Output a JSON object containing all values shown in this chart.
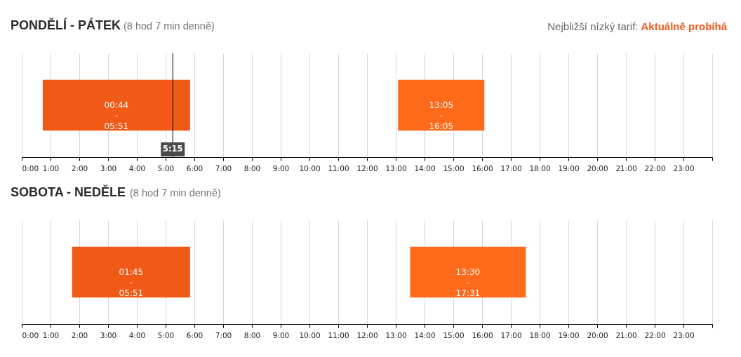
{
  "chart_data": [
    {
      "type": "bar",
      "orientation": "horizontal",
      "title": "PONDĚLÍ - PÁTEK",
      "subtitle": "(8 hod 7 min denně)",
      "annotations": [
        "Nejbližší nízký tarif:",
        "Aktuálně probíhá"
      ],
      "categories": [
        null
      ],
      "series": [
        {
          "color": "#f05a16",
          "values": [
            5.12
          ],
          "base": [
            0.73
          ],
          "value_labels": [
            "00:44\n-\n05:51"
          ]
        },
        {
          "color": "#fc6a1a",
          "values": [
            3.0
          ],
          "base": [
            13.08
          ],
          "value_labels": [
            "13:05\n-\n16:05"
          ]
        }
      ],
      "xlim": [
        0,
        24
      ],
      "xticks": [
        {
          "value": 0,
          "label": "0:00"
        },
        {
          "value": 1,
          "label": "1:00"
        },
        {
          "value": 2,
          "label": "2:00"
        },
        {
          "value": 3,
          "label": "3:00"
        },
        {
          "value": 4,
          "label": "4:00"
        },
        {
          "value": 5,
          "label": "5:00"
        },
        {
          "value": 6,
          "label": "6:00"
        },
        {
          "value": 7,
          "label": "7:00"
        },
        {
          "value": 8,
          "label": "8:00"
        },
        {
          "value": 9,
          "label": "9:00"
        },
        {
          "value": 10,
          "label": "10:00"
        },
        {
          "value": 11,
          "label": "11:00"
        },
        {
          "value": 12,
          "label": "12:00"
        },
        {
          "value": 13,
          "label": "13:00"
        },
        {
          "value": 14,
          "label": "14:00"
        },
        {
          "value": 15,
          "label": "15:00"
        },
        {
          "value": 16,
          "label": "16:00"
        },
        {
          "value": 17,
          "label": "17:00"
        },
        {
          "value": 18,
          "label": "18:00"
        },
        {
          "value": 19,
          "label": "19:00"
        },
        {
          "value": 20,
          "label": "20:00"
        },
        {
          "value": 21,
          "label": "21:00"
        },
        {
          "value": 22,
          "label": "22:00"
        },
        {
          "value": 23,
          "label": "23:00"
        },
        {
          "value": 24,
          "label": null
        }
      ],
      "grid": "x",
      "tick_labels": "x",
      "ref_lines": [
        {
          "axis": "x",
          "value": 5.25,
          "label": "5:15",
          "color": "#000000"
        }
      ]
    },
    {
      "type": "bar",
      "orientation": "horizontal",
      "title": "SOBOTA - NEDĚLE",
      "subtitle": "(8 hod 7 min denně)",
      "categories": [
        null
      ],
      "series": [
        {
          "color": "#f05a16",
          "values": [
            4.1
          ],
          "base": [
            1.75
          ],
          "value_labels": [
            "01:45\n-\n05:51"
          ]
        },
        {
          "color": "#fc6a1a",
          "values": [
            4.02
          ],
          "base": [
            13.5
          ],
          "value_labels": [
            "13:30\n-\n17:31"
          ]
        }
      ],
      "xlim": [
        0,
        24
      ],
      "xticks": [
        {
          "value": 0,
          "label": "0:00"
        },
        {
          "value": 1,
          "label": "1:00"
        },
        {
          "value": 2,
          "label": "2:00"
        },
        {
          "value": 3,
          "label": "3:00"
        },
        {
          "value": 4,
          "label": "4:00"
        },
        {
          "value": 5,
          "label": "5:00"
        },
        {
          "value": 6,
          "label": "6:00"
        },
        {
          "value": 7,
          "label": "7:00"
        },
        {
          "value": 8,
          "label": "8:00"
        },
        {
          "value": 9,
          "label": "9:00"
        },
        {
          "value": 10,
          "label": "10:00"
        },
        {
          "value": 11,
          "label": "11:00"
        },
        {
          "value": 12,
          "label": "12:00"
        },
        {
          "value": 13,
          "label": "13:00"
        },
        {
          "value": 14,
          "label": "14:00"
        },
        {
          "value": 15,
          "label": "15:00"
        },
        {
          "value": 16,
          "label": "16:00"
        },
        {
          "value": 17,
          "label": "17:00"
        },
        {
          "value": 18,
          "label": "18:00"
        },
        {
          "value": 19,
          "label": "19:00"
        },
        {
          "value": 20,
          "label": "20:00"
        },
        {
          "value": 21,
          "label": "21:00"
        },
        {
          "value": 22,
          "label": "22:00"
        },
        {
          "value": 23,
          "label": "23:00"
        },
        {
          "value": 24,
          "label": null
        }
      ],
      "grid": "x",
      "tick_labels": "x"
    }
  ]
}
